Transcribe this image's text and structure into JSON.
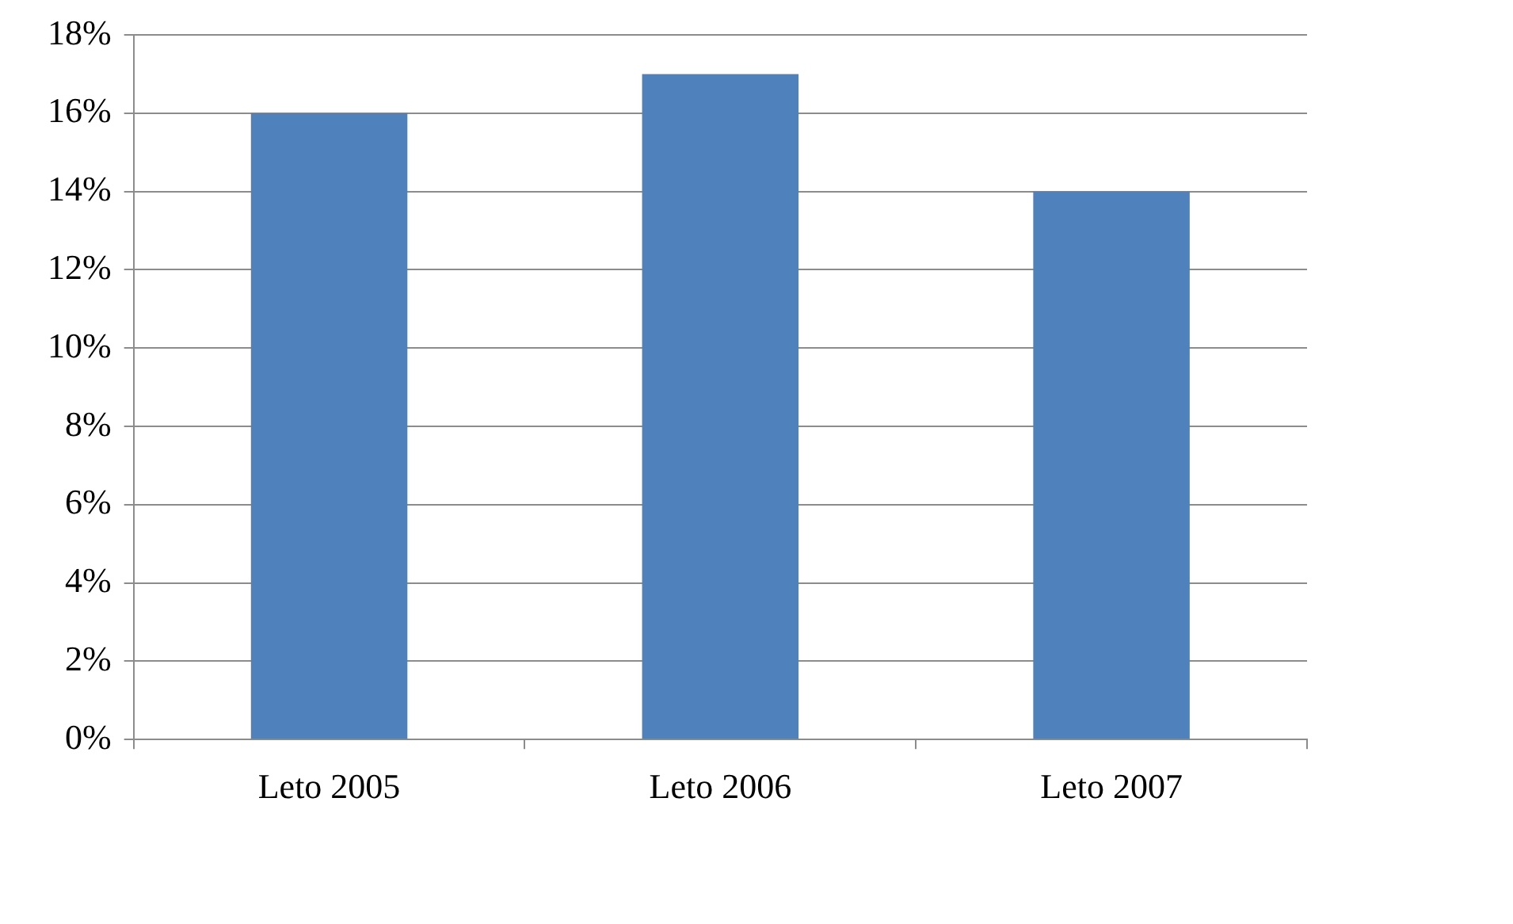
{
  "chart_data": {
    "type": "bar",
    "categories": [
      "Leto 2005",
      "Leto 2006",
      "Leto 2007"
    ],
    "values": [
      16,
      17,
      14
    ],
    "color": "#4f81bd",
    "ylim": [
      0,
      18
    ],
    "yticks": [
      {
        "value": 0,
        "label": "0%"
      },
      {
        "value": 2,
        "label": "2%"
      },
      {
        "value": 4,
        "label": "4%"
      },
      {
        "value": 6,
        "label": "6%"
      },
      {
        "value": 8,
        "label": "8%"
      },
      {
        "value": 10,
        "label": "10%"
      },
      {
        "value": 12,
        "label": "12%"
      },
      {
        "value": 14,
        "label": "14%"
      },
      {
        "value": 16,
        "label": "16%"
      },
      {
        "value": 18,
        "label": "18%"
      }
    ],
    "grid": "y",
    "legend": false
  }
}
